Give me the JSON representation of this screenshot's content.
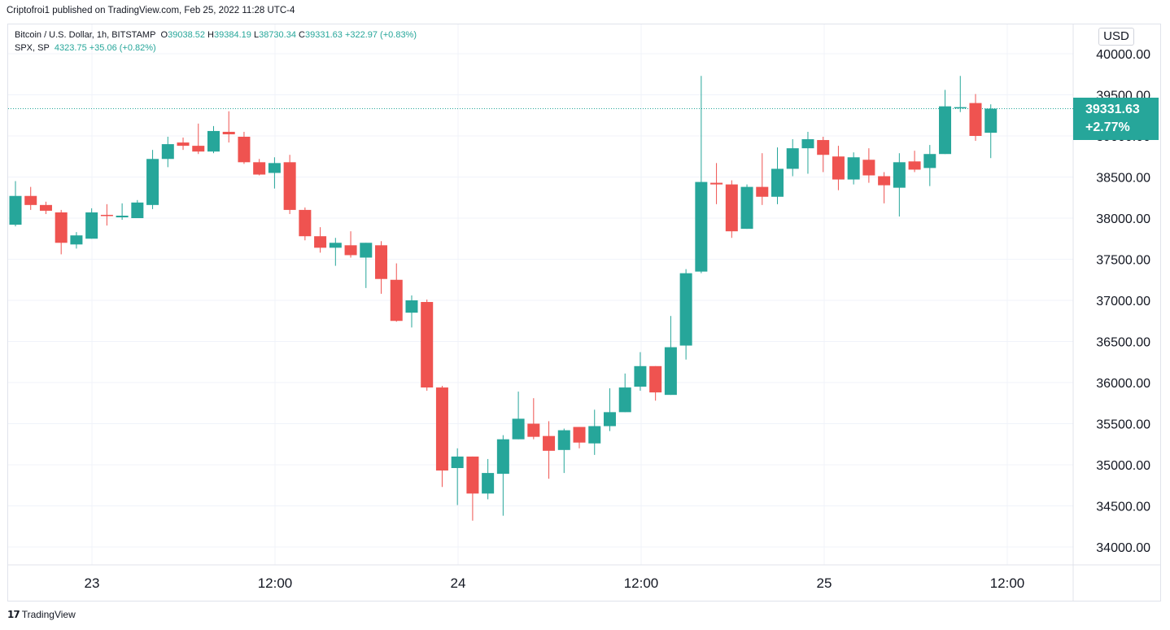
{
  "publisher": "Criptofroi1 published on TradingView.com, Feb 25, 2022 11:28 UTC-4",
  "legend": {
    "symbol": "Bitcoin / U.S. Dollar, 1h, BITSTAMP",
    "open_label": "O",
    "open": "39038.52",
    "high_label": "H",
    "high": "39384.19",
    "low_label": "L",
    "low": "38730.34",
    "close_label": "C",
    "close": "39331.63",
    "change": "+322.97 (+0.83%)",
    "spx_symbol": "SPX, SP",
    "spx_value": "4323.75",
    "spx_change": "+35.06 (+0.82%)"
  },
  "currency_button": "USD",
  "price_tag": {
    "price": "39331.63",
    "change": "+2.77%"
  },
  "footer_logo": "TradingView",
  "colors": {
    "up": "#26a69a",
    "down": "#ef5350",
    "grid": "#f0f3fa",
    "axis_text": "#131722"
  },
  "chart_data": {
    "type": "candlestick",
    "y_ticks": [
      "34000.00",
      "34500.00",
      "35000.00",
      "35500.00",
      "36000.00",
      "36500.00",
      "37000.00",
      "37500.00",
      "38000.00",
      "38500.00",
      "39000.00",
      "39500.00",
      "40000.00"
    ],
    "x_ticks": [
      "23",
      "12:00",
      "24",
      "12:00",
      "25",
      "12:00"
    ],
    "last_price": 39331.63,
    "candles": [
      {
        "o": 37920,
        "h": 38450,
        "l": 37900,
        "c": 38270
      },
      {
        "o": 38270,
        "h": 38380,
        "l": 38100,
        "c": 38160
      },
      {
        "o": 38160,
        "h": 38200,
        "l": 38050,
        "c": 38090
      },
      {
        "o": 38070,
        "h": 38100,
        "l": 37560,
        "c": 37700
      },
      {
        "o": 37680,
        "h": 37830,
        "l": 37630,
        "c": 37790
      },
      {
        "o": 37750,
        "h": 38120,
        "l": 37750,
        "c": 38070
      },
      {
        "o": 38040,
        "h": 38170,
        "l": 37910,
        "c": 38030
      },
      {
        "o": 38010,
        "h": 38180,
        "l": 37980,
        "c": 38030
      },
      {
        "o": 38000,
        "h": 38220,
        "l": 38000,
        "c": 38190
      },
      {
        "o": 38160,
        "h": 38830,
        "l": 38110,
        "c": 38720
      },
      {
        "o": 38720,
        "h": 38990,
        "l": 38620,
        "c": 38900
      },
      {
        "o": 38920,
        "h": 38980,
        "l": 38830,
        "c": 38880
      },
      {
        "o": 38880,
        "h": 39150,
        "l": 38780,
        "c": 38810
      },
      {
        "o": 38810,
        "h": 39120,
        "l": 38790,
        "c": 39060
      },
      {
        "o": 39050,
        "h": 39300,
        "l": 38920,
        "c": 39020
      },
      {
        "o": 38990,
        "h": 39050,
        "l": 38660,
        "c": 38680
      },
      {
        "o": 38680,
        "h": 38720,
        "l": 38520,
        "c": 38530
      },
      {
        "o": 38550,
        "h": 38740,
        "l": 38360,
        "c": 38670
      },
      {
        "o": 38680,
        "h": 38770,
        "l": 38050,
        "c": 38100
      },
      {
        "o": 38100,
        "h": 38130,
        "l": 37730,
        "c": 37780
      },
      {
        "o": 37780,
        "h": 37890,
        "l": 37580,
        "c": 37640
      },
      {
        "o": 37640,
        "h": 37760,
        "l": 37420,
        "c": 37700
      },
      {
        "o": 37670,
        "h": 37840,
        "l": 37520,
        "c": 37550
      },
      {
        "o": 37520,
        "h": 37700,
        "l": 37150,
        "c": 37700
      },
      {
        "o": 37670,
        "h": 37720,
        "l": 37080,
        "c": 37260
      },
      {
        "o": 37250,
        "h": 37450,
        "l": 36740,
        "c": 36750
      },
      {
        "o": 36850,
        "h": 37060,
        "l": 36670,
        "c": 37000
      },
      {
        "o": 36980,
        "h": 37010,
        "l": 35900,
        "c": 35940
      },
      {
        "o": 35940,
        "h": 35960,
        "l": 34730,
        "c": 34930
      },
      {
        "o": 34960,
        "h": 35200,
        "l": 34510,
        "c": 35100
      },
      {
        "o": 35100,
        "h": 35100,
        "l": 34320,
        "c": 34650
      },
      {
        "o": 34650,
        "h": 35070,
        "l": 34580,
        "c": 34900
      },
      {
        "o": 34890,
        "h": 35360,
        "l": 34380,
        "c": 35310
      },
      {
        "o": 35310,
        "h": 35890,
        "l": 35310,
        "c": 35560
      },
      {
        "o": 35500,
        "h": 35810,
        "l": 35310,
        "c": 35340
      },
      {
        "o": 35350,
        "h": 35530,
        "l": 34830,
        "c": 35170
      },
      {
        "o": 35180,
        "h": 35440,
        "l": 34900,
        "c": 35420
      },
      {
        "o": 35460,
        "h": 35460,
        "l": 35200,
        "c": 35270
      },
      {
        "o": 35260,
        "h": 35670,
        "l": 35120,
        "c": 35470
      },
      {
        "o": 35470,
        "h": 35930,
        "l": 35410,
        "c": 35640
      },
      {
        "o": 35640,
        "h": 36110,
        "l": 35640,
        "c": 35940
      },
      {
        "o": 35950,
        "h": 36370,
        "l": 35900,
        "c": 36200
      },
      {
        "o": 36200,
        "h": 36200,
        "l": 35780,
        "c": 35880
      },
      {
        "o": 35850,
        "h": 36810,
        "l": 35850,
        "c": 36430
      },
      {
        "o": 36450,
        "h": 37380,
        "l": 36280,
        "c": 37330
      },
      {
        "o": 37350,
        "h": 39730,
        "l": 37330,
        "c": 38440
      },
      {
        "o": 38430,
        "h": 38670,
        "l": 38170,
        "c": 38410
      },
      {
        "o": 38410,
        "h": 38460,
        "l": 37760,
        "c": 37840
      },
      {
        "o": 37870,
        "h": 38410,
        "l": 37870,
        "c": 38380
      },
      {
        "o": 38380,
        "h": 38790,
        "l": 38160,
        "c": 38260
      },
      {
        "o": 38260,
        "h": 38860,
        "l": 38170,
        "c": 38600
      },
      {
        "o": 38600,
        "h": 38960,
        "l": 38510,
        "c": 38850
      },
      {
        "o": 38850,
        "h": 39050,
        "l": 38540,
        "c": 38960
      },
      {
        "o": 38950,
        "h": 38990,
        "l": 38560,
        "c": 38770
      },
      {
        "o": 38750,
        "h": 38880,
        "l": 38340,
        "c": 38470
      },
      {
        "o": 38470,
        "h": 38800,
        "l": 38410,
        "c": 38740
      },
      {
        "o": 38710,
        "h": 38850,
        "l": 38430,
        "c": 38520
      },
      {
        "o": 38510,
        "h": 38560,
        "l": 38180,
        "c": 38400
      },
      {
        "o": 38370,
        "h": 38790,
        "l": 38020,
        "c": 38680
      },
      {
        "o": 38690,
        "h": 38820,
        "l": 38560,
        "c": 38590
      },
      {
        "o": 38610,
        "h": 38890,
        "l": 38390,
        "c": 38780
      },
      {
        "o": 38780,
        "h": 39560,
        "l": 38780,
        "c": 39360
      },
      {
        "o": 39350,
        "h": 39730,
        "l": 39290,
        "c": 39350
      },
      {
        "o": 39400,
        "h": 39510,
        "l": 38940,
        "c": 39000
      },
      {
        "o": 39038.52,
        "h": 39384.19,
        "l": 38730.34,
        "c": 39331.63
      }
    ]
  }
}
